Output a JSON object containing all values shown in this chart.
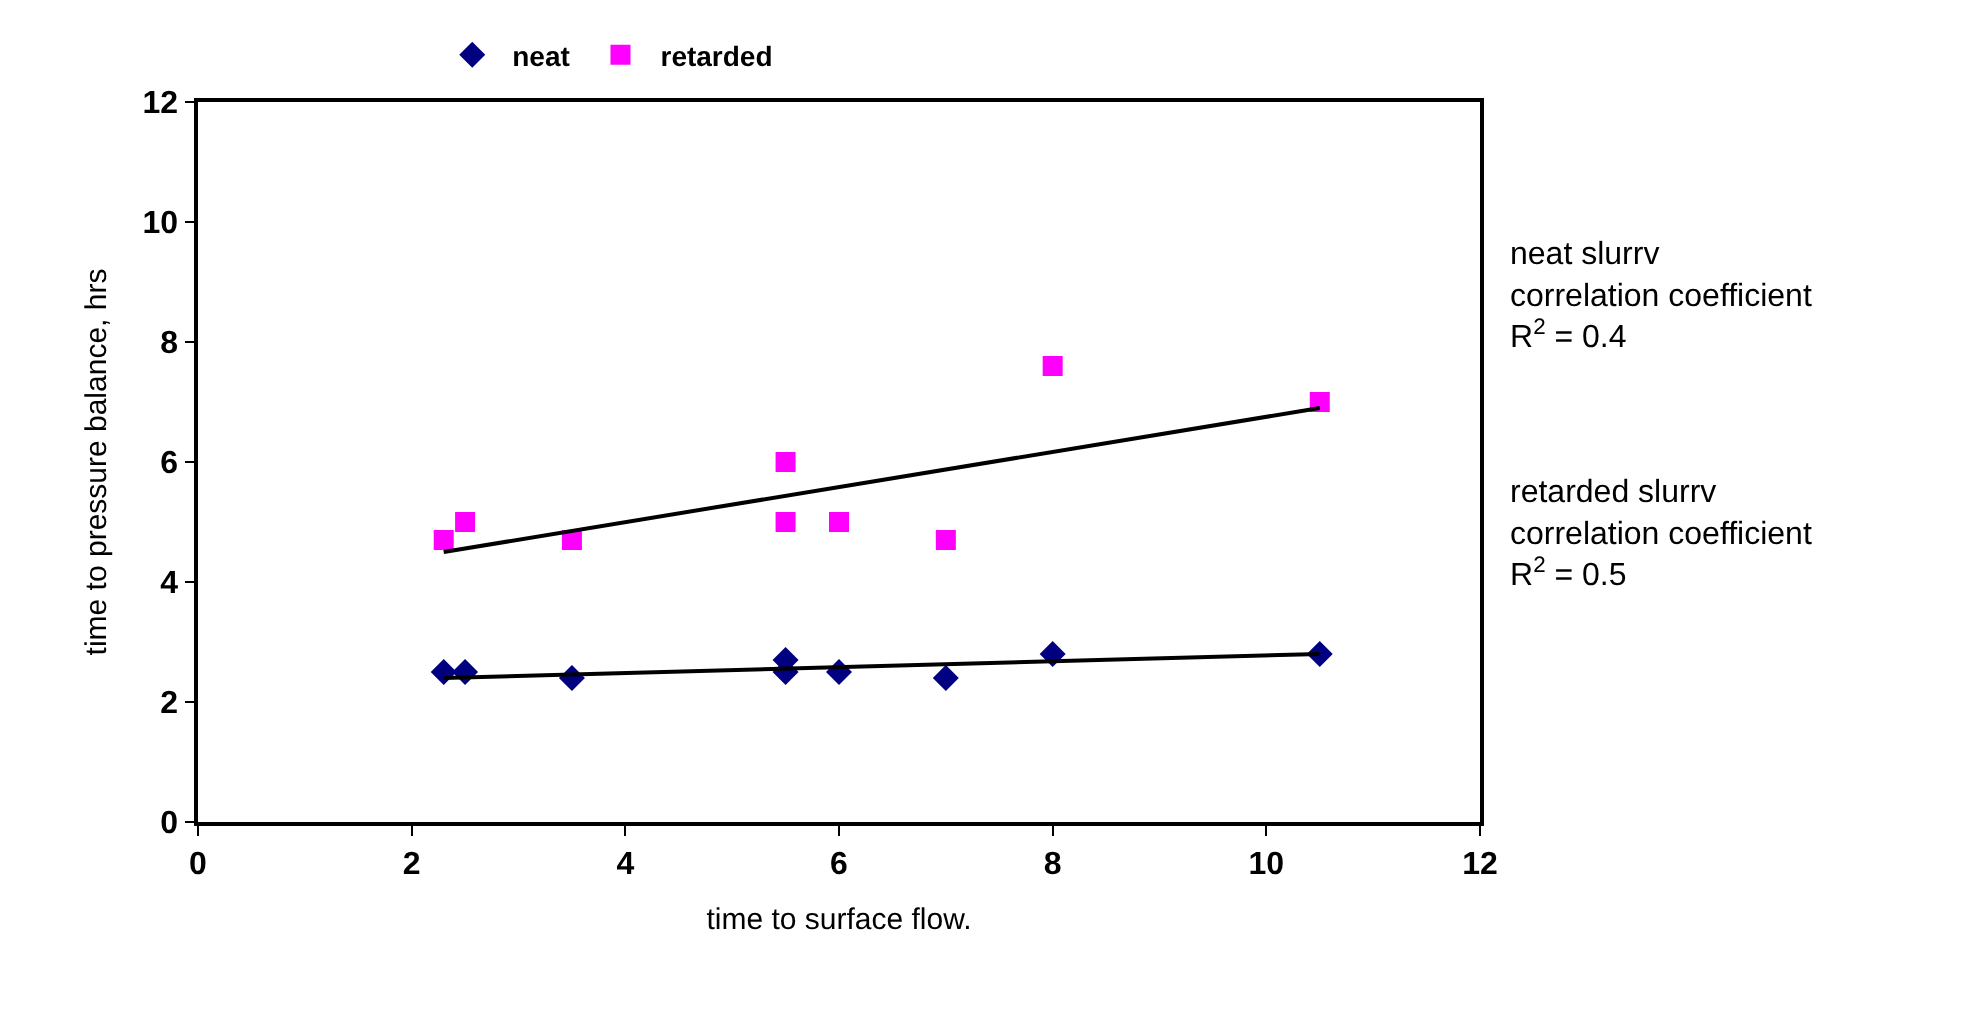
{
  "chart_data": {
    "type": "scatter",
    "xlabel": "time to surface flow.",
    "ylabel": "time to pressure balance, hrs",
    "xlim": [
      0,
      12
    ],
    "xticks": [
      0,
      2,
      4,
      6,
      8,
      10,
      12
    ],
    "ylim": [
      0,
      12
    ],
    "yticks": [
      0,
      2,
      4,
      6,
      8,
      10,
      12
    ],
    "grid": false,
    "legend": "top",
    "series": [
      {
        "name": "neat",
        "color": "#000080",
        "marker": "diamond",
        "x": [
          2.3,
          2.5,
          3.5,
          5.5,
          5.5,
          6,
          7,
          8,
          10.5
        ],
        "values": [
          2.5,
          2.5,
          2.4,
          2.7,
          2.5,
          2.5,
          2.4,
          2.8,
          2.8
        ]
      },
      {
        "name": "retarded",
        "color": "#ff00ff",
        "marker": "square",
        "x": [
          2.3,
          2.5,
          3.5,
          5.5,
          5.5,
          6,
          7,
          8,
          10.5
        ],
        "values": [
          4.7,
          5.0,
          4.7,
          6.0,
          5.0,
          5.0,
          4.7,
          7.6,
          7.0
        ]
      },
      {
        "type": "line",
        "color": "#000000",
        "marker": "none",
        "x": [
          2.3,
          10.5
        ],
        "values": [
          4.5,
          6.9
        ]
      },
      {
        "type": "line",
        "color": "#000000",
        "marker": "none",
        "x": [
          2.3,
          10.5
        ],
        "values": [
          2.4,
          2.8
        ]
      }
    ],
    "annotations": [
      "neat slurrv\ncorrelation coefficient\nR$^{2}$ = 0.4",
      "retarded slurrv\ncorrelation coefficient\nR$^{2}$ = 0.5"
    ]
  }
}
